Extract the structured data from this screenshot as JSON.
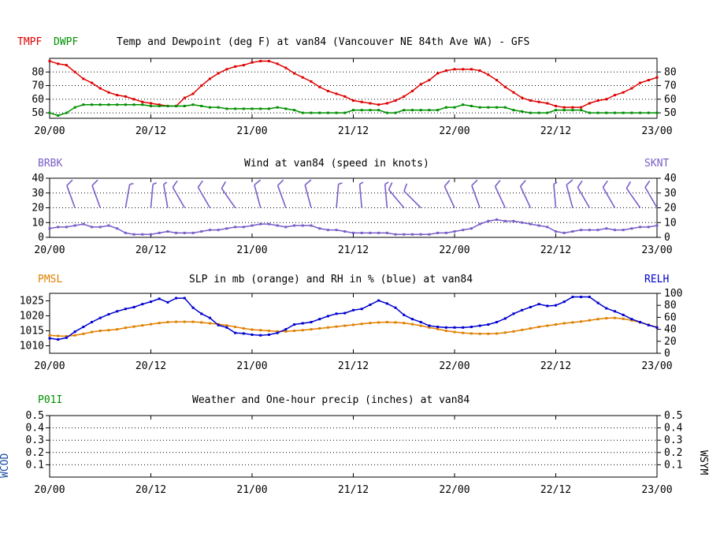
{
  "chart_data": [
    {
      "type": "line",
      "id": "temp",
      "title": "Temp and Dewpoint (deg F) at van84 (Vancouver NE 84th Ave WA) - GFS",
      "left_labels": [
        {
          "text": "TMPF",
          "color": "#e00000"
        },
        {
          "text": "DWPF",
          "color": "#009000"
        }
      ],
      "categories": [
        "20/00",
        "20/12",
        "21/00",
        "21/12",
        "22/00",
        "22/12",
        "23/00"
      ],
      "x_range": [
        0,
        72
      ],
      "ylim": [
        46,
        90
      ],
      "y_ticks": [
        50,
        60,
        70,
        80
      ],
      "series": [
        {
          "name": "TMPF",
          "color": "#e00000",
          "x": [
            0,
            1,
            2,
            3,
            4,
            5,
            6,
            7,
            8,
            9,
            10,
            11,
            12,
            13,
            14,
            15,
            16,
            17,
            18,
            19,
            20,
            21,
            22,
            23,
            24,
            25,
            26,
            27,
            28,
            29,
            30,
            31,
            32,
            33,
            34,
            35,
            36,
            37,
            38,
            39,
            40,
            41,
            42,
            43,
            44,
            45,
            46,
            47,
            48,
            49,
            50,
            51,
            52,
            53,
            54,
            55,
            56,
            57,
            58,
            59,
            60,
            61,
            62,
            63,
            64,
            65,
            66,
            67,
            68,
            69,
            70,
            71,
            72
          ],
          "values": [
            88,
            86,
            85,
            80,
            75,
            72,
            68,
            65,
            63,
            62,
            60,
            58,
            57,
            56,
            55,
            55,
            61,
            64,
            70,
            75,
            79,
            82,
            84,
            85,
            87,
            88,
            88,
            86,
            83,
            79,
            76,
            73,
            69,
            66,
            64,
            62,
            59,
            58,
            57,
            56,
            57,
            59,
            62,
            66,
            71,
            74,
            79,
            81,
            82,
            82,
            82,
            81,
            78,
            74,
            69,
            65,
            61,
            59,
            58,
            57,
            55,
            54,
            54,
            54,
            57,
            59,
            60,
            63,
            65,
            68,
            72,
            74,
            76
          ]
        },
        {
          "name": "DWPF",
          "color": "#009000",
          "x": [
            0,
            1,
            2,
            3,
            4,
            5,
            6,
            7,
            8,
            9,
            10,
            11,
            12,
            13,
            14,
            15,
            16,
            17,
            18,
            19,
            20,
            21,
            22,
            23,
            24,
            25,
            26,
            27,
            28,
            29,
            30,
            31,
            32,
            33,
            34,
            35,
            36,
            37,
            38,
            39,
            40,
            41,
            42,
            43,
            44,
            45,
            46,
            47,
            48,
            49,
            50,
            51,
            52,
            53,
            54,
            55,
            56,
            57,
            58,
            59,
            60,
            61,
            62,
            63,
            64,
            65,
            66,
            67,
            68,
            69,
            70,
            71,
            72
          ],
          "values": [
            50,
            48,
            50,
            54,
            56,
            56,
            56,
            56,
            56,
            56,
            56,
            56,
            55,
            55,
            55,
            55,
            55,
            56,
            55,
            54,
            54,
            53,
            53,
            53,
            53,
            53,
            53,
            54,
            53,
            52,
            50,
            50,
            50,
            50,
            50,
            50,
            52,
            52,
            52,
            52,
            50,
            50,
            52,
            52,
            52,
            52,
            52,
            54,
            54,
            56,
            55,
            54,
            54,
            54,
            54,
            52,
            51,
            50,
            50,
            50,
            52,
            52,
            52,
            52,
            50,
            50,
            50,
            50,
            50,
            50,
            50,
            50,
            50
          ]
        }
      ],
      "right_ticks": [
        50,
        60,
        70,
        80
      ]
    },
    {
      "type": "line",
      "id": "wind",
      "title": "Wind at  van84 (speed in knots)",
      "left_label": {
        "text": "BRBK",
        "color": "#7a5ec8"
      },
      "right_label": {
        "text": "SKNT",
        "color": "#7a5ec8"
      },
      "categories": [
        "20/00",
        "20/12",
        "21/00",
        "21/12",
        "22/00",
        "22/12",
        "23/00"
      ],
      "x_range": [
        0,
        72
      ],
      "ylim": [
        0,
        40
      ],
      "y_ticks": [
        0,
        10,
        20,
        30,
        40
      ],
      "series": [
        {
          "name": "SKNT",
          "color": "#7a5ec8",
          "x": [
            0,
            1,
            2,
            3,
            4,
            5,
            6,
            7,
            8,
            9,
            10,
            11,
            12,
            13,
            14,
            15,
            16,
            17,
            18,
            19,
            20,
            21,
            22,
            23,
            24,
            25,
            26,
            27,
            28,
            29,
            30,
            31,
            32,
            33,
            34,
            35,
            36,
            37,
            38,
            39,
            40,
            41,
            42,
            43,
            44,
            45,
            46,
            47,
            48,
            49,
            50,
            51,
            52,
            53,
            54,
            55,
            56,
            57,
            58,
            59,
            60,
            61,
            62,
            63,
            64,
            65,
            66,
            67,
            68,
            69,
            70,
            71,
            72
          ],
          "values": [
            6,
            7,
            7,
            8,
            9,
            7,
            7,
            8,
            6,
            3,
            2,
            2,
            2,
            3,
            4,
            3,
            3,
            3,
            4,
            5,
            5,
            6,
            7,
            7,
            8,
            9,
            9,
            8,
            7,
            8,
            8,
            8,
            6,
            5,
            5,
            4,
            3,
            3,
            3,
            3,
            3,
            2,
            2,
            2,
            2,
            2,
            3,
            3,
            4,
            5,
            6,
            9,
            11,
            12,
            11,
            11,
            10,
            9,
            8,
            7,
            4,
            3,
            4,
            5,
            5,
            5,
            6,
            5,
            5,
            6,
            7,
            7,
            8
          ]
        }
      ],
      "barbs": [
        {
          "x": 3,
          "dir": 340,
          "speed": 10
        },
        {
          "x": 6,
          "dir": 340,
          "speed": 10
        },
        {
          "x": 9,
          "dir": 10,
          "speed": 5
        },
        {
          "x": 12,
          "dir": 5,
          "speed": 5
        },
        {
          "x": 14,
          "dir": 350,
          "speed": 5
        },
        {
          "x": 16,
          "dir": 330,
          "speed": 10
        },
        {
          "x": 19,
          "dir": 330,
          "speed": 10
        },
        {
          "x": 22,
          "dir": 325,
          "speed": 10
        },
        {
          "x": 25,
          "dir": 345,
          "speed": 10
        },
        {
          "x": 28,
          "dir": 340,
          "speed": 10
        },
        {
          "x": 31,
          "dir": 345,
          "speed": 10
        },
        {
          "x": 34,
          "dir": 5,
          "speed": 5
        },
        {
          "x": 37,
          "dir": 355,
          "speed": 5
        },
        {
          "x": 40,
          "dir": 355,
          "speed": 5
        },
        {
          "x": 42,
          "dir": 320,
          "speed": 10
        },
        {
          "x": 44,
          "dir": 315,
          "speed": 10
        },
        {
          "x": 48,
          "dir": 335,
          "speed": 10
        },
        {
          "x": 51,
          "dir": 340,
          "speed": 10
        },
        {
          "x": 54,
          "dir": 335,
          "speed": 10
        },
        {
          "x": 57,
          "dir": 335,
          "speed": 10
        },
        {
          "x": 60,
          "dir": 355,
          "speed": 5
        },
        {
          "x": 62,
          "dir": 345,
          "speed": 10
        },
        {
          "x": 64,
          "dir": 330,
          "speed": 10
        },
        {
          "x": 67,
          "dir": 330,
          "speed": 10
        },
        {
          "x": 70,
          "dir": 325,
          "speed": 10
        },
        {
          "x": 72,
          "dir": 330,
          "speed": 10
        }
      ],
      "right_ticks": [
        0,
        10,
        20,
        30,
        40
      ]
    },
    {
      "type": "line",
      "id": "slp",
      "title": "SLP in mb (orange) and RH in % (blue) at  van84",
      "left_label": {
        "text": "PMSL",
        "color": "#e08000"
      },
      "right_label": {
        "text": "RELH",
        "color": "#0000d0"
      },
      "categories": [
        "20/00",
        "20/12",
        "21/00",
        "21/12",
        "22/00",
        "22/12",
        "23/00"
      ],
      "x_range": [
        0,
        72
      ],
      "ylim": [
        1007.5,
        1027.5
      ],
      "y_ticks": [
        1010,
        1015,
        1020,
        1025
      ],
      "right_ylim": [
        0,
        100
      ],
      "right_ticks": [
        0,
        20,
        40,
        60,
        80,
        100
      ],
      "series": [
        {
          "name": "PMSL",
          "color": "#e08000",
          "axis": "left",
          "x": [
            0,
            1,
            2,
            3,
            4,
            5,
            6,
            7,
            8,
            9,
            10,
            11,
            12,
            13,
            14,
            15,
            16,
            17,
            18,
            19,
            20,
            21,
            22,
            23,
            24,
            25,
            26,
            27,
            28,
            29,
            30,
            31,
            32,
            33,
            34,
            35,
            36,
            37,
            38,
            39,
            40,
            41,
            42,
            43,
            44,
            45,
            46,
            47,
            48,
            49,
            50,
            51,
            52,
            53,
            54,
            55,
            56,
            57,
            58,
            59,
            60,
            61,
            62,
            63,
            64,
            65,
            66,
            67,
            68,
            69,
            70,
            71,
            72
          ],
          "values": [
            1013.5,
            1013.3,
            1013.2,
            1013.5,
            1014,
            1014.6,
            1015,
            1015.2,
            1015.5,
            1016,
            1016.4,
            1016.8,
            1017.2,
            1017.6,
            1017.9,
            1018,
            1018,
            1018,
            1017.8,
            1017.5,
            1017.2,
            1016.8,
            1016.3,
            1015.8,
            1015.4,
            1015.2,
            1015,
            1014.8,
            1014.8,
            1015,
            1015.2,
            1015.5,
            1015.8,
            1016.1,
            1016.4,
            1016.7,
            1017,
            1017.3,
            1017.6,
            1017.8,
            1017.9,
            1017.8,
            1017.6,
            1017.2,
            1016.7,
            1016.1,
            1015.6,
            1015,
            1014.6,
            1014.3,
            1014.1,
            1014,
            1014,
            1014.1,
            1014.4,
            1014.8,
            1015.3,
            1015.8,
            1016.3,
            1016.7,
            1017.1,
            1017.5,
            1017.8,
            1018.1,
            1018.5,
            1018.9,
            1019.2,
            1019.3,
            1019,
            1018.5,
            1017.8,
            1017,
            1016.2
          ]
        },
        {
          "name": "RELH",
          "color": "#0000d0",
          "axis": "right",
          "x": [
            0,
            1,
            2,
            3,
            4,
            5,
            6,
            7,
            8,
            9,
            10,
            11,
            12,
            13,
            14,
            15,
            16,
            17,
            18,
            19,
            20,
            21,
            22,
            23,
            24,
            25,
            26,
            27,
            28,
            29,
            30,
            31,
            32,
            33,
            34,
            35,
            36,
            37,
            38,
            39,
            40,
            41,
            42,
            43,
            44,
            45,
            46,
            47,
            48,
            49,
            50,
            51,
            52,
            53,
            54,
            55,
            56,
            57,
            58,
            59,
            60,
            61,
            62,
            63,
            64,
            65,
            66,
            67,
            68,
            69,
            70,
            71,
            72
          ],
          "values": [
            25,
            23,
            26,
            36,
            44,
            52,
            59,
            65,
            70,
            74,
            77,
            82,
            86,
            91,
            85,
            92,
            92,
            76,
            66,
            59,
            47,
            43,
            34,
            33,
            31,
            30,
            31,
            34,
            40,
            48,
            50,
            52,
            57,
            62,
            66,
            67,
            72,
            74,
            81,
            88,
            83,
            76,
            64,
            57,
            52,
            46,
            44,
            43,
            43,
            43,
            44,
            46,
            48,
            52,
            58,
            66,
            72,
            77,
            82,
            79,
            80,
            86,
            94,
            94,
            94,
            84,
            75,
            70,
            64,
            57,
            52,
            47,
            43
          ]
        }
      ]
    },
    {
      "type": "line",
      "id": "precip",
      "title": "Weather and One-hour precip (inches) at  van84",
      "left_label": {
        "text": "P01I",
        "color": "#009000"
      },
      "side_left": "WCOD",
      "side_right": "WSYM",
      "categories": [
        "20/00",
        "20/12",
        "21/00",
        "21/12",
        "22/00",
        "22/12",
        "23/00"
      ],
      "x_range": [
        0,
        72
      ],
      "ylim": [
        0,
        0.5
      ],
      "y_ticks": [
        "0.1",
        "0.2",
        "0.3",
        "0.4",
        "0.5"
      ],
      "right_ticks": [
        "0.1",
        "0.2",
        "0.3",
        "0.4",
        "0.5"
      ],
      "series": []
    }
  ]
}
